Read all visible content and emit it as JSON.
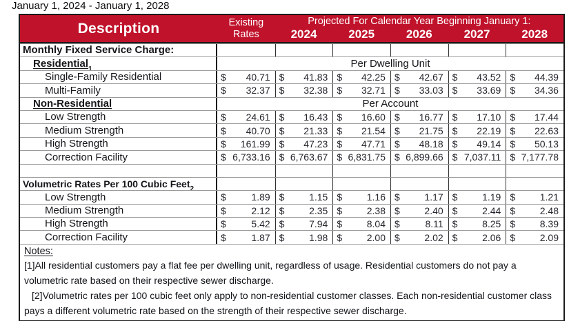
{
  "title": "January 1, 2024 - January 1, 2028",
  "currency_symbol": "$",
  "colors": {
    "header_red": "#C0122B"
  },
  "header": {
    "description": "Description",
    "existing_line1": "Existing",
    "existing_line2": "Rates",
    "projected_title": "Projected For Calendar Year Beginning January 1:",
    "years": [
      "2024",
      "2025",
      "2026",
      "2027",
      "2028"
    ]
  },
  "rows": [
    {
      "label": "Monthly Fixed Service Charge:"
    },
    {
      "label": "Residential",
      "sup": "1",
      "span_text": "Per Dwelling Unit"
    },
    {
      "label": "Single-Family Residential",
      "values": [
        "40.71",
        "41.83",
        "42.25",
        "42.67",
        "43.52",
        "44.39"
      ]
    },
    {
      "label": "Multi-Family",
      "values": [
        "32.37",
        "32.38",
        "32.71",
        "33.03",
        "33.69",
        "34.36"
      ]
    },
    {
      "label": "Non-Residential",
      "span_text": "Per Account"
    },
    {
      "label": "Low Strength",
      "values": [
        "24.61",
        "16.43",
        "16.60",
        "16.77",
        "17.10",
        "17.44"
      ]
    },
    {
      "label": "Medium Strength",
      "values": [
        "40.70",
        "21.33",
        "21.54",
        "21.75",
        "22.19",
        "22.63"
      ]
    },
    {
      "label": "High Strength",
      "values": [
        "161.99",
        "47.23",
        "47.71",
        "48.18",
        "49.14",
        "50.13"
      ]
    },
    {
      "label": "Correction Facility",
      "values": [
        "6,733.16",
        "6,763.67",
        "6,831.75",
        "6,899.66",
        "7,037.11",
        "7,177.78"
      ]
    },
    {
      "label": ""
    },
    {
      "label": "Volumetric Rates Per 100 Cubic Feet",
      "sup": "2"
    },
    {
      "label": "Low Strength",
      "values": [
        "1.89",
        "1.15",
        "1.16",
        "1.17",
        "1.19",
        "1.21"
      ]
    },
    {
      "label": "Medium Strength",
      "values": [
        "2.12",
        "2.35",
        "2.38",
        "2.40",
        "2.44",
        "2.48"
      ]
    },
    {
      "label": "High Strength",
      "values": [
        "5.42",
        "7.94",
        "8.04",
        "8.11",
        "8.25",
        "8.39"
      ]
    },
    {
      "label": "Correction Facility",
      "values": [
        "1.87",
        "1.98",
        "2.00",
        "2.02",
        "2.06",
        "2.09"
      ]
    }
  ],
  "notes": {
    "heading": "Notes:",
    "items": [
      "[1]All residential customers pay a flat fee per dwelling unit, regardless of usage. Residential customers do not pay a volumetric rate based on their respective sewer discharge.",
      "[2]Volumetric rates per 100 cubic feet only apply to non-residential customer classes. Each non-residential customer class pays a different volumetric rate based on the strength of their respective sewer discharge."
    ]
  }
}
